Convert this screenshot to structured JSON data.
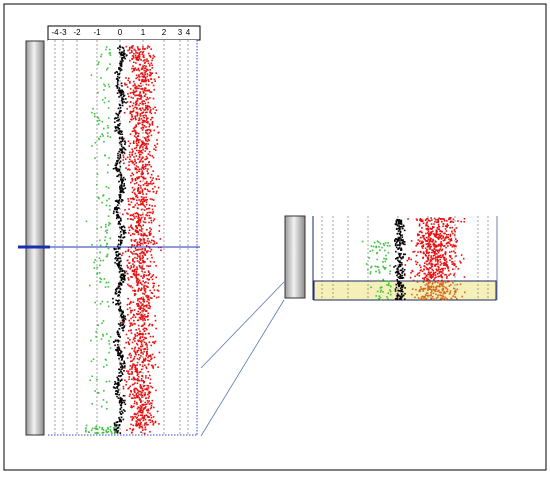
{
  "axis": {
    "ticks": [
      "-4",
      "-3",
      "-2",
      "-1",
      "0",
      "1",
      "2",
      "3",
      "4"
    ]
  }
}
